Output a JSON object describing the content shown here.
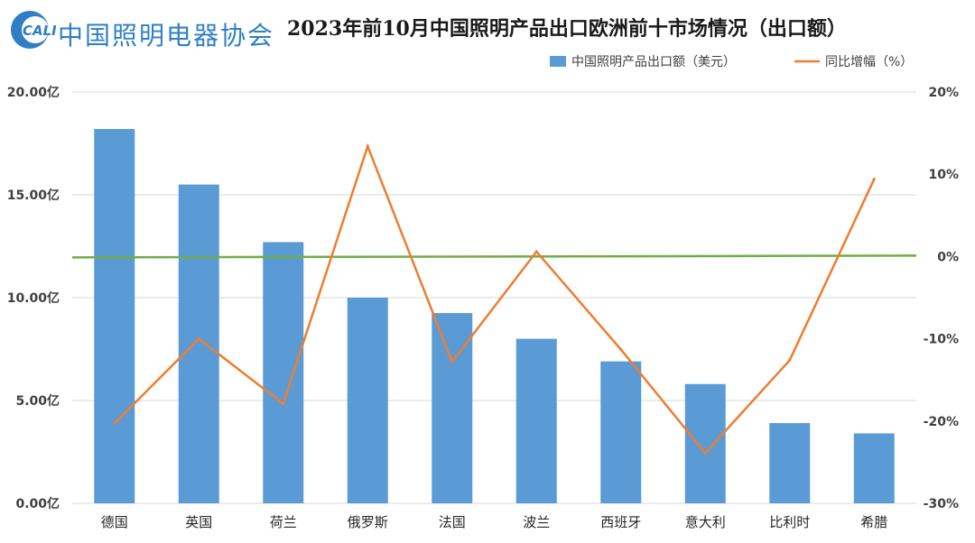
{
  "header": {
    "logo_abbr": "CALI",
    "logo_text": "中国照明电器协会"
  },
  "chart_data": {
    "type": "bar",
    "title": "2023年前10月中国照明产品出口欧洲前十市场情况（出口额）",
    "categories": [
      "德国",
      "英国",
      "荷兰",
      "俄罗斯",
      "法国",
      "波兰",
      "西班牙",
      "意大利",
      "比利时",
      "希腊"
    ],
    "series": [
      {
        "name": "中国照明产品出口额（美元）",
        "type": "bar",
        "axis": "left",
        "color": "#5b9bd5",
        "values": [
          18.2,
          15.5,
          12.7,
          10.0,
          9.25,
          8.0,
          6.9,
          5.8,
          3.9,
          3.4
        ]
      },
      {
        "name": "同比增幅（%）",
        "type": "line",
        "axis": "right",
        "color": "#ed7d31",
        "values": [
          -20.3,
          -10.0,
          -17.9,
          13.4,
          -12.8,
          0.6,
          -11.3,
          -23.9,
          -12.6,
          9.4
        ]
      }
    ],
    "reference_line": {
      "axis": "right",
      "value": 0,
      "color": "#70ad47"
    },
    "y_left": {
      "ylim": [
        0,
        20
      ],
      "ticks": [
        "0.00亿",
        "5.00亿",
        "10.00亿",
        "15.00亿",
        "20.00亿"
      ]
    },
    "y_right": {
      "ylim": [
        -30,
        20
      ],
      "ticks": [
        "-30%",
        "-20%",
        "-10%",
        "0%",
        "10%",
        "20%"
      ]
    },
    "grid": true,
    "legend_position": "top-right"
  }
}
